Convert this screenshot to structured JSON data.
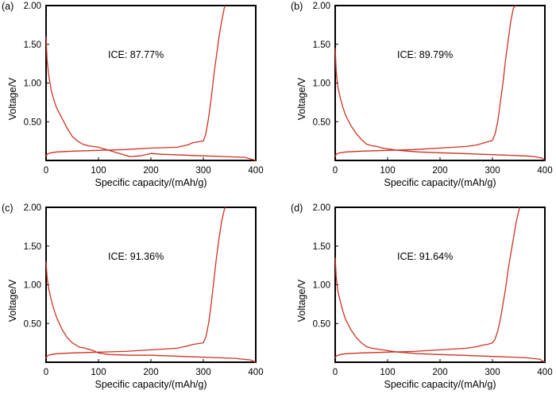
{
  "figure": {
    "curve_color": "#cc3322",
    "axis_color": "#000000"
  },
  "chart_data": [
    {
      "type": "line",
      "panel_label": "(a)",
      "annotation": "ICE: 87.77%",
      "xlabel": "Specific capacity/(mAh/g)",
      "ylabel": "Voltage/V",
      "xlim": [
        0,
        400
      ],
      "ylim": [
        0.0,
        2.0
      ],
      "x_ticks": [
        "0",
        "100",
        "200",
        "300",
        "400"
      ],
      "y_ticks": [
        "2.00",
        "1.50",
        "1.00",
        "0.50"
      ],
      "series": [
        {
          "name": "discharge",
          "x": [
            0,
            2,
            5,
            10,
            15,
            20,
            30,
            40,
            50,
            60,
            70,
            80,
            90,
            100,
            110,
            120,
            140,
            160,
            180,
            200,
            220,
            260,
            300,
            340,
            380,
            400
          ],
          "y": [
            1.6,
            1.3,
            1.1,
            0.9,
            0.78,
            0.68,
            0.55,
            0.42,
            0.31,
            0.25,
            0.21,
            0.19,
            0.18,
            0.17,
            0.15,
            0.13,
            0.09,
            0.05,
            0.06,
            0.09,
            0.08,
            0.07,
            0.06,
            0.05,
            0.04,
            0.0
          ]
        },
        {
          "name": "charge",
          "x": [
            0,
            2,
            5,
            10,
            20,
            50,
            100,
            150,
            200,
            250,
            270,
            280,
            290,
            300,
            305,
            310,
            315,
            320,
            325,
            330,
            335,
            340,
            342
          ],
          "y": [
            0.05,
            0.08,
            0.09,
            0.1,
            0.11,
            0.12,
            0.13,
            0.14,
            0.16,
            0.17,
            0.2,
            0.23,
            0.24,
            0.25,
            0.35,
            0.55,
            0.8,
            1.1,
            1.35,
            1.6,
            1.8,
            1.97,
            2.0
          ]
        }
      ]
    },
    {
      "type": "line",
      "panel_label": "(b)",
      "annotation": "ICE: 89.79%",
      "xlabel": "Specific capacity/(mAh/g)",
      "ylabel": "Voltage/V",
      "xlim": [
        0,
        400
      ],
      "ylim": [
        0.0,
        2.0
      ],
      "x_ticks": [
        "0",
        "100",
        "200",
        "300",
        "400"
      ],
      "y_ticks": [
        "2.00",
        "1.50",
        "1.00",
        "0.50"
      ],
      "series": [
        {
          "name": "discharge",
          "x": [
            0,
            2,
            5,
            10,
            15,
            20,
            30,
            40,
            50,
            60,
            70,
            80,
            90,
            100,
            120,
            140,
            160,
            200,
            240,
            280,
            320,
            360,
            380,
            395,
            400
          ],
          "y": [
            1.45,
            1.15,
            0.95,
            0.8,
            0.68,
            0.58,
            0.45,
            0.35,
            0.27,
            0.21,
            0.19,
            0.18,
            0.16,
            0.15,
            0.13,
            0.12,
            0.11,
            0.1,
            0.09,
            0.08,
            0.07,
            0.06,
            0.05,
            0.03,
            0.0
          ]
        },
        {
          "name": "charge",
          "x": [
            0,
            2,
            5,
            10,
            20,
            50,
            100,
            150,
            200,
            250,
            270,
            280,
            290,
            300,
            305,
            310,
            315,
            320,
            325,
            330,
            335,
            340,
            345
          ],
          "y": [
            0.05,
            0.08,
            0.09,
            0.1,
            0.11,
            0.12,
            0.13,
            0.14,
            0.16,
            0.18,
            0.2,
            0.22,
            0.24,
            0.26,
            0.34,
            0.5,
            0.75,
            1.0,
            1.3,
            1.55,
            1.8,
            1.97,
            2.0
          ]
        }
      ]
    },
    {
      "type": "line",
      "panel_label": "(c)",
      "annotation": "ICE: 91.36%",
      "xlabel": "Specific capacity/(mAh/g)",
      "ylabel": "Voltage/V",
      "xlim": [
        0,
        400
      ],
      "ylim": [
        0.0,
        2.0
      ],
      "x_ticks": [
        "0",
        "100",
        "200",
        "300",
        "400"
      ],
      "y_ticks": [
        "2.00",
        "1.50",
        "1.00",
        "0.50"
      ],
      "series": [
        {
          "name": "discharge",
          "x": [
            0,
            2,
            5,
            10,
            15,
            20,
            30,
            40,
            50,
            60,
            65,
            70,
            80,
            90,
            100,
            120,
            160,
            200,
            240,
            280,
            320,
            360,
            390,
            400
          ],
          "y": [
            1.3,
            1.1,
            0.95,
            0.8,
            0.68,
            0.58,
            0.43,
            0.32,
            0.25,
            0.21,
            0.19,
            0.19,
            0.17,
            0.15,
            0.12,
            0.1,
            0.09,
            0.09,
            0.08,
            0.07,
            0.06,
            0.05,
            0.03,
            0.0
          ]
        },
        {
          "name": "charge",
          "x": [
            0,
            2,
            5,
            10,
            20,
            50,
            100,
            150,
            200,
            250,
            270,
            280,
            290,
            300,
            305,
            310,
            315,
            320,
            325,
            330,
            335,
            340,
            342
          ],
          "y": [
            0.05,
            0.08,
            0.09,
            0.1,
            0.11,
            0.12,
            0.13,
            0.14,
            0.16,
            0.18,
            0.21,
            0.23,
            0.24,
            0.25,
            0.33,
            0.5,
            0.75,
            1.05,
            1.35,
            1.6,
            1.82,
            1.97,
            2.0
          ]
        }
      ]
    },
    {
      "type": "line",
      "panel_label": "(d)",
      "annotation": "ICE: 91.64%",
      "xlabel": "Specific capacity/(mAh/g)",
      "ylabel": "Voltage/V",
      "xlim": [
        0,
        400
      ],
      "ylim": [
        0.0,
        2.0
      ],
      "x_ticks": [
        "0",
        "100",
        "200",
        "300",
        "400"
      ],
      "y_ticks": [
        "2.00",
        "1.50",
        "1.00",
        "0.50"
      ],
      "series": [
        {
          "name": "discharge",
          "x": [
            0,
            2,
            5,
            10,
            15,
            20,
            30,
            40,
            50,
            60,
            70,
            80,
            90,
            100,
            120,
            160,
            200,
            240,
            280,
            320,
            360,
            390,
            400
          ],
          "y": [
            1.35,
            1.1,
            0.92,
            0.78,
            0.65,
            0.55,
            0.42,
            0.32,
            0.25,
            0.2,
            0.18,
            0.17,
            0.16,
            0.15,
            0.13,
            0.11,
            0.1,
            0.09,
            0.08,
            0.07,
            0.06,
            0.04,
            0.0
          ]
        },
        {
          "name": "charge",
          "x": [
            0,
            2,
            5,
            10,
            20,
            50,
            100,
            150,
            200,
            250,
            270,
            280,
            290,
            300,
            305,
            310,
            315,
            320,
            325,
            330,
            335,
            340,
            345,
            350,
            352
          ],
          "y": [
            0.05,
            0.08,
            0.09,
            0.1,
            0.11,
            0.12,
            0.13,
            0.14,
            0.16,
            0.18,
            0.2,
            0.22,
            0.23,
            0.25,
            0.3,
            0.4,
            0.55,
            0.75,
            0.95,
            1.2,
            1.4,
            1.6,
            1.8,
            1.95,
            2.0
          ]
        }
      ]
    }
  ]
}
